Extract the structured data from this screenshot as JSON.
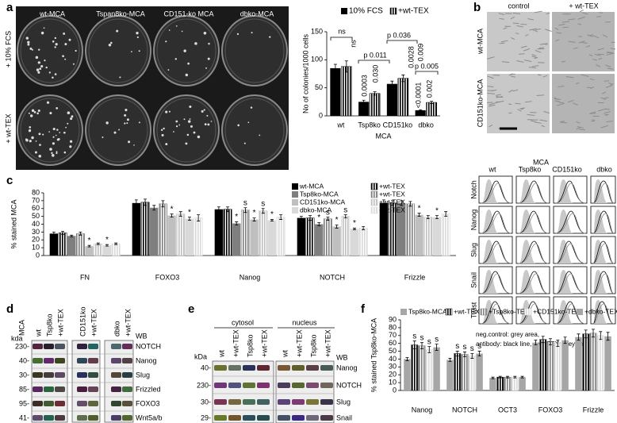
{
  "figure": {
    "panel_a": {
      "letter": "a",
      "columns": [
        "wt-MCA",
        "Tspan8ko-MCA",
        "CD151-ko MCA",
        "dbko-MCA"
      ],
      "rows": [
        "+ 10% FCS",
        "+ wt-TEX"
      ]
    },
    "panel_b": {
      "letter": "b",
      "columns": [
        "control",
        "+ wt-TEX"
      ],
      "rows": [
        "wt-MCA",
        "CD151ko-MCA"
      ],
      "flow_title": "MCA",
      "flow_columns": [
        "wt",
        "Tsp8ko",
        "CD151ko",
        "dbko"
      ],
      "flow_rows": [
        "Notch",
        "Nanog",
        "Slug",
        "Snail",
        "Twist"
      ],
      "legend": [
        "neg.control: grey area,",
        "antibody: black line, + wt TEX: grey line"
      ]
    },
    "panel_c": {
      "letter": "c"
    },
    "panel_d": {
      "letter": "d",
      "group": "MCA",
      "kda": "kda",
      "lanes": [
        "wt",
        "Tsp8ko",
        "+wt-TEX",
        "CD151ko",
        "+wt-TEX",
        "dbko",
        "+wt-TEX"
      ],
      "wb": "WB",
      "markers": [
        "230-",
        "40-",
        "30-",
        "85-",
        "95-",
        "41-"
      ],
      "targets": [
        "NOTCH",
        "Nanog",
        "Slug",
        "Frizzled",
        "FOXO3",
        "Wnt5a/b"
      ]
    },
    "panel_e": {
      "letter": "e",
      "groups": [
        "cytosol",
        "nucleus"
      ],
      "kda": "kDa",
      "lanes": [
        "wt",
        "+wt-TEX",
        "Tsp8ko",
        "+wt-TEX",
        "wt",
        "+wt-TEX",
        "Tsp8ko",
        "+wt-TEX"
      ],
      "wb": "WB",
      "markers": [
        "40-",
        "230-",
        "30-",
        "29-"
      ],
      "targets": [
        "Nanog",
        "NOTCH",
        "Slug",
        "Snail"
      ]
    },
    "panel_f": {
      "letter": "f"
    }
  },
  "chart_data": [
    {
      "type": "bar",
      "ylabel": "No of colonies/1000 cells",
      "xlabel": "MCA",
      "categories": [
        "wt",
        "Tsp8ko",
        "CD151ko",
        "dbko"
      ],
      "series": [
        {
          "name": "10% FCS",
          "color": "#000000",
          "values": [
            85,
            25,
            57,
            10
          ],
          "errors": [
            7,
            3,
            5,
            1
          ]
        },
        {
          "name": "+wt-TEX",
          "color": "#000000",
          "hatch": true,
          "values": [
            88,
            40,
            67,
            24
          ],
          "errors": [
            10,
            3,
            6,
            2
          ]
        }
      ],
      "ylim": [
        0,
        150
      ],
      "yticks": [
        0,
        50,
        100,
        150
      ],
      "annotations": [
        "ns",
        "ns",
        "p 0.011",
        "0.0003",
        "0.030",
        "p 0.036",
        "0.0028",
        "0.009",
        "p 0.005",
        "<0.0001",
        "0.002"
      ]
    },
    {
      "type": "bar",
      "ylabel": "% stained MCA",
      "categories": [
        "FN",
        "FOXO3",
        "Nanog",
        "NOTCH",
        "Frizzle"
      ],
      "series": [
        {
          "name": "wt-MCA",
          "color": "#000000",
          "values": [
            28,
            67,
            59,
            48,
            67
          ],
          "errors": [
            2,
            4,
            3,
            2,
            4
          ],
          "annotations": [
            null,
            null,
            null,
            null,
            null
          ]
        },
        {
          "name": "+wt-TEX",
          "color": "#000000",
          "hatch": true,
          "values": [
            29,
            68,
            59,
            48,
            67
          ],
          "errors": [
            2,
            4,
            3,
            3,
            3
          ],
          "annotations": [
            null,
            null,
            null,
            null,
            null
          ]
        },
        {
          "name": "Tsp8ko-MCA",
          "color": "#7f7f7f",
          "values": [
            25,
            61,
            41,
            40,
            67
          ],
          "errors": [
            1,
            3,
            2,
            2,
            3
          ],
          "annotations": [
            null,
            null,
            "*",
            "*",
            null
          ]
        },
        {
          "name": "+wt-TEX",
          "color": "#7f7f7f",
          "hatch": true,
          "values": [
            28,
            66,
            58,
            47,
            66
          ],
          "errors": [
            2,
            4,
            3,
            2,
            3
          ],
          "annotations": [
            null,
            null,
            "s",
            "s",
            null
          ]
        },
        {
          "name": "CD151ko-MCA",
          "color": "#bfbfbf",
          "values": [
            12,
            51,
            46,
            37,
            52
          ],
          "errors": [
            1,
            2,
            2,
            2,
            2
          ],
          "annotations": [
            "*",
            "*",
            "*",
            "*",
            "*"
          ]
        },
        {
          "name": "+wt-TEX",
          "color": "#bfbfbf",
          "hatch": true,
          "values": [
            15,
            53,
            57,
            50,
            49
          ],
          "errors": [
            1,
            3,
            3,
            2,
            2
          ],
          "annotations": [
            null,
            null,
            "s",
            "s",
            null
          ]
        },
        {
          "name": "dbko-MCA",
          "color": "#d9d9d9",
          "values": [
            13,
            47,
            45,
            34,
            49
          ],
          "errors": [
            1,
            2,
            1,
            1,
            2
          ],
          "annotations": [
            "*",
            "*",
            "*",
            "*",
            "*"
          ]
        },
        {
          "name": "+wt-TEX",
          "color": "#d9d9d9",
          "hatch": true,
          "values": [
            15,
            48,
            49,
            35,
            53
          ],
          "errors": [
            1,
            4,
            3,
            2,
            3
          ],
          "annotations": [
            null,
            null,
            null,
            null,
            null
          ]
        }
      ],
      "ylim": [
        0,
        80
      ],
      "yticks": [
        0,
        10,
        20,
        30,
        40,
        50,
        60,
        70,
        80
      ]
    },
    {
      "type": "bar",
      "ylabel": "% stained Tsp8ko-MCA",
      "categories": [
        "Nanog",
        "NOTCH",
        "OCT3",
        "FOXO3",
        "Frizzle"
      ],
      "series": [
        {
          "name": "Tsp8ko-MCA",
          "color": "#a6a6a6",
          "values": [
            40,
            39,
            16,
            61,
            68
          ],
          "errors": [
            2,
            2,
            1,
            3,
            4
          ],
          "annotations": [
            null,
            null,
            null,
            null,
            null
          ]
        },
        {
          "name": "+wt-TEX",
          "color": "#000000",
          "hatch": true,
          "values": [
            58,
            47,
            17,
            65,
            72
          ],
          "errors": [
            5,
            3,
            1,
            4,
            5
          ],
          "annotations": [
            "s",
            "s",
            null,
            null,
            null
          ]
        },
        {
          "name": "+Tsp8ko-TEX",
          "color": "#7f7f7f",
          "hatch": true,
          "values": [
            57,
            46,
            17,
            62,
            73
          ],
          "errors": [
            4,
            3,
            1,
            4,
            5
          ],
          "annotations": [
            "s",
            "s",
            null,
            null,
            null
          ]
        },
        {
          "name": "+CD151ko-TEX",
          "color": "#d9d9d9",
          "hatch": true,
          "values": [
            52,
            44,
            17,
            60,
            70
          ],
          "errors": [
            4,
            3,
            1,
            4,
            5
          ],
          "annotations": [
            "s",
            "s",
            null,
            null,
            null
          ]
        },
        {
          "name": "+dbko-TEX",
          "color": "#a6a6a6",
          "values": [
            55,
            47,
            17,
            64,
            69
          ],
          "errors": [
            4,
            3,
            1,
            4,
            5
          ],
          "annotations": [
            "s",
            "s",
            null,
            null,
            null
          ]
        }
      ],
      "ylim": [
        0,
        90
      ],
      "yticks": [
        0,
        10,
        20,
        30,
        40,
        50,
        60,
        70,
        80,
        90
      ]
    }
  ]
}
